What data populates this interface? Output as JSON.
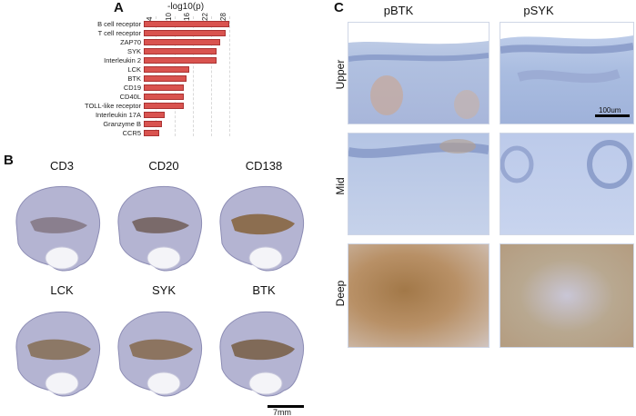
{
  "panels": {
    "a": "A",
    "b": "B",
    "c": "C"
  },
  "chart_data": {
    "type": "bar",
    "orientation": "horizontal",
    "xlabel": "-log10(p)",
    "xticks": [
      "4",
      "10",
      "16",
      "22",
      "28"
    ],
    "xlim": [
      0,
      30
    ],
    "categories": [
      "B cell receptor",
      "T cell receptor",
      "ZAP70",
      "SYK",
      "Interleukin 2",
      "LCK",
      "BTK",
      "CD19",
      "CD40L",
      "TOLL-like receptor",
      "Interleukin 17A",
      "Granzyme B",
      "CCR5"
    ],
    "values": [
      28,
      27,
      25,
      24,
      24,
      15,
      14,
      13,
      13,
      13,
      7,
      6,
      5
    ],
    "bar_color": "#d9534f",
    "grid": "vertical dashed"
  },
  "panel_b": {
    "stains": [
      "CD3",
      "CD20",
      "CD138",
      "LCK",
      "SYK",
      "BTK"
    ],
    "scale_label": "7mm"
  },
  "panel_c": {
    "columns": [
      "pBTK",
      "pSYK"
    ],
    "rows": [
      "Upper",
      "Mid",
      "Deep"
    ],
    "scale_label": "100um"
  }
}
